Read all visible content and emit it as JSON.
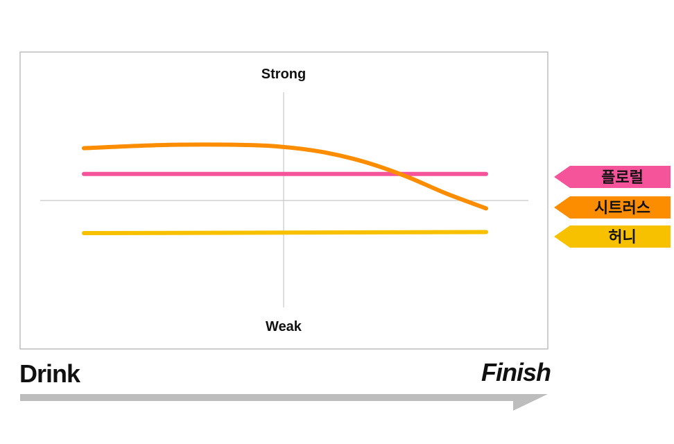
{
  "chart_data": {
    "type": "line",
    "ylabel_top": "Strong",
    "ylabel_bottom": "Weak",
    "xlabel_start": "Drink",
    "xlabel_end": "Finish",
    "x_domain": [
      0,
      1
    ],
    "y_domain": [
      -1,
      1
    ],
    "series": [
      {
        "name": "플로럴",
        "color": "#f5549b",
        "x": [
          0,
          1
        ],
        "values": [
          0.24,
          0.24
        ]
      },
      {
        "name": "시트러스",
        "color": "#fc8c00",
        "x": [
          0,
          0.2,
          0.4,
          0.5,
          0.6,
          0.7,
          0.8,
          0.9,
          1.0
        ],
        "values": [
          0.48,
          0.51,
          0.51,
          0.49,
          0.44,
          0.35,
          0.22,
          0.06,
          -0.08
        ]
      },
      {
        "name": "허니",
        "color": "#f8c100",
        "x": [
          0,
          1
        ],
        "values": [
          -0.31,
          -0.3
        ]
      }
    ]
  },
  "colors": {
    "frame": "#bdbdbd",
    "axis": "#c8c8c8",
    "progress_arrow": "#bdbdbd"
  }
}
